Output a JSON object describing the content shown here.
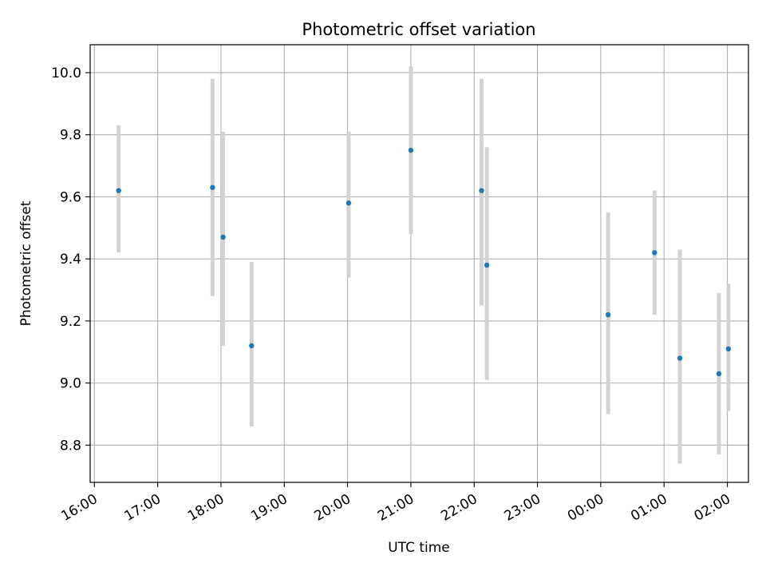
{
  "chart_data": {
    "type": "scatter",
    "title": "Photometric offset variation",
    "xlabel": "UTC time",
    "ylabel": "Photometric offset",
    "x_ticks": [
      "16:00",
      "17:00",
      "18:00",
      "19:00",
      "20:00",
      "21:00",
      "22:00",
      "23:00",
      "00:00",
      "01:00",
      "02:00"
    ],
    "y_ticks": [
      "8.8",
      "9.0",
      "9.2",
      "9.4",
      "9.6",
      "9.8",
      "10.0"
    ],
    "xlim": [
      "15:56",
      "02:20"
    ],
    "ylim": [
      8.68,
      10.09
    ],
    "grid": true,
    "colors": {
      "point": "#1f77b4",
      "errorbar": "#d3d3d3",
      "grid": "#b0b0b0"
    },
    "points": [
      {
        "x": "16:23",
        "y": 9.62,
        "y_low": 9.42,
        "y_high": 9.83
      },
      {
        "x": "17:52",
        "y": 9.63,
        "y_low": 9.28,
        "y_high": 9.98
      },
      {
        "x": "18:02",
        "y": 9.47,
        "y_low": 9.12,
        "y_high": 9.81
      },
      {
        "x": "18:29",
        "y": 9.12,
        "y_low": 8.86,
        "y_high": 9.39
      },
      {
        "x": "20:01",
        "y": 9.58,
        "y_low": 9.34,
        "y_high": 9.81
      },
      {
        "x": "21:00",
        "y": 9.75,
        "y_low": 9.48,
        "y_high": 10.02
      },
      {
        "x": "22:07",
        "y": 9.62,
        "y_low": 9.25,
        "y_high": 9.98
      },
      {
        "x": "22:12",
        "y": 9.38,
        "y_low": 9.01,
        "y_high": 9.76
      },
      {
        "x": "00:07",
        "y": 9.22,
        "y_low": 8.9,
        "y_high": 9.55
      },
      {
        "x": "00:51",
        "y": 9.42,
        "y_low": 9.22,
        "y_high": 9.62
      },
      {
        "x": "01:15",
        "y": 9.08,
        "y_low": 8.74,
        "y_high": 9.43
      },
      {
        "x": "01:52",
        "y": 9.03,
        "y_low": 8.77,
        "y_high": 9.29
      },
      {
        "x": "02:01",
        "y": 9.11,
        "y_low": 8.91,
        "y_high": 9.32
      }
    ]
  }
}
